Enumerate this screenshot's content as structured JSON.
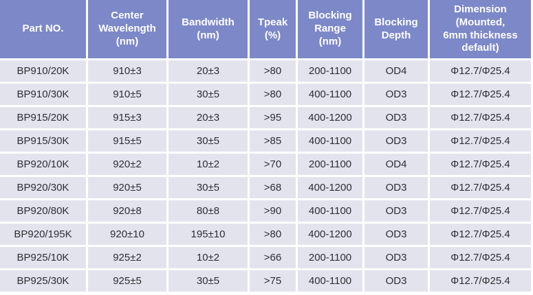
{
  "colors": {
    "header_bg": "#7c88c7",
    "row_bg": "#e3e3ee",
    "header_text": "#ffffff",
    "body_text": "#2d2d31",
    "grid": "#ffffff"
  },
  "table": {
    "columns": [
      "Part NO.",
      "Center\nWavelength\n(nm)",
      "Bandwidth\n(nm)",
      "Tpeak\n(%)",
      "Blocking\nRange\n(nm)",
      "Blocking\nDepth",
      "Dimension\n(Mounted,\n6mm thickness\ndefault)"
    ],
    "rows": [
      [
        "BP910/20K",
        "910±3",
        "20±3",
        ">80",
        "200-1100",
        "OD4",
        "Φ12.7/Φ25.4"
      ],
      [
        "BP910/30K",
        "910±5",
        "30±5",
        ">80",
        "400-1100",
        "OD3",
        "Φ12.7/Φ25.4"
      ],
      [
        "BP915/20K",
        "915±3",
        "20±3",
        ">95",
        "400-1200",
        "OD3",
        "Φ12.7/Φ25.4"
      ],
      [
        "BP915/30K",
        "915±5",
        "30±5",
        ">85",
        "400-1100",
        "OD3",
        "Φ12.7/Φ25.4"
      ],
      [
        "BP920/10K",
        "920±2",
        "10±2",
        ">70",
        "200-1100",
        "OD4",
        "Φ12.7/Φ25.4"
      ],
      [
        "BP920/30K",
        "920±5",
        "30±5",
        ">68",
        "400-1200",
        "OD3",
        "Φ12.7/Φ25.4"
      ],
      [
        "BP920/80K",
        "920±8",
        "80±8",
        ">90",
        "400-1100",
        "OD3",
        "Φ12.7/Φ25.4"
      ],
      [
        "BP920/195K",
        "920±10",
        "195±10",
        ">80",
        "400-1200",
        "OD3",
        "Φ12.7/Φ25.4"
      ],
      [
        "BP925/10K",
        "925±2",
        "10±2",
        ">66",
        "200-1100",
        "OD3",
        "Φ12.7/Φ25.4"
      ],
      [
        "BP925/30K",
        "925±5",
        "30±5",
        ">75",
        "400-1100",
        "OD3",
        "Φ12.7/Φ25.4"
      ]
    ]
  }
}
